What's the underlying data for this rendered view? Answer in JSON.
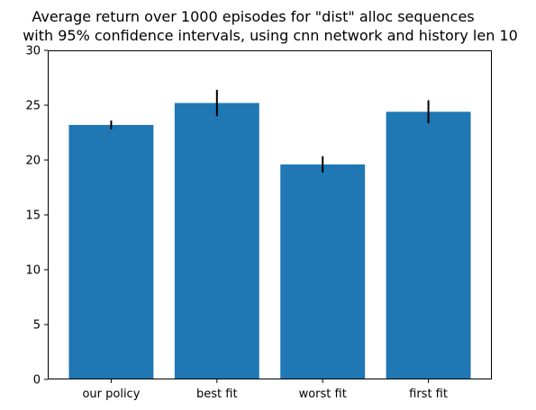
{
  "chart_data": {
    "type": "bar",
    "title": "Average return over 1000 episodes for \"dist\" alloc sequences\nwith 95% confidence intervals, using cnn network and history len 10",
    "xlabel": "",
    "ylabel": "",
    "categories": [
      "our policy",
      "best fit",
      "worst fit",
      "first fit"
    ],
    "values": [
      23.2,
      25.2,
      19.6,
      24.4
    ],
    "errors": [
      0.4,
      1.2,
      0.75,
      1.05
    ],
    "ylim": [
      0,
      30
    ],
    "yticks": [
      0,
      5,
      10,
      15,
      20,
      25,
      30
    ],
    "grid": false,
    "bar_color": "#1f77b4",
    "error_color": "#000000"
  }
}
